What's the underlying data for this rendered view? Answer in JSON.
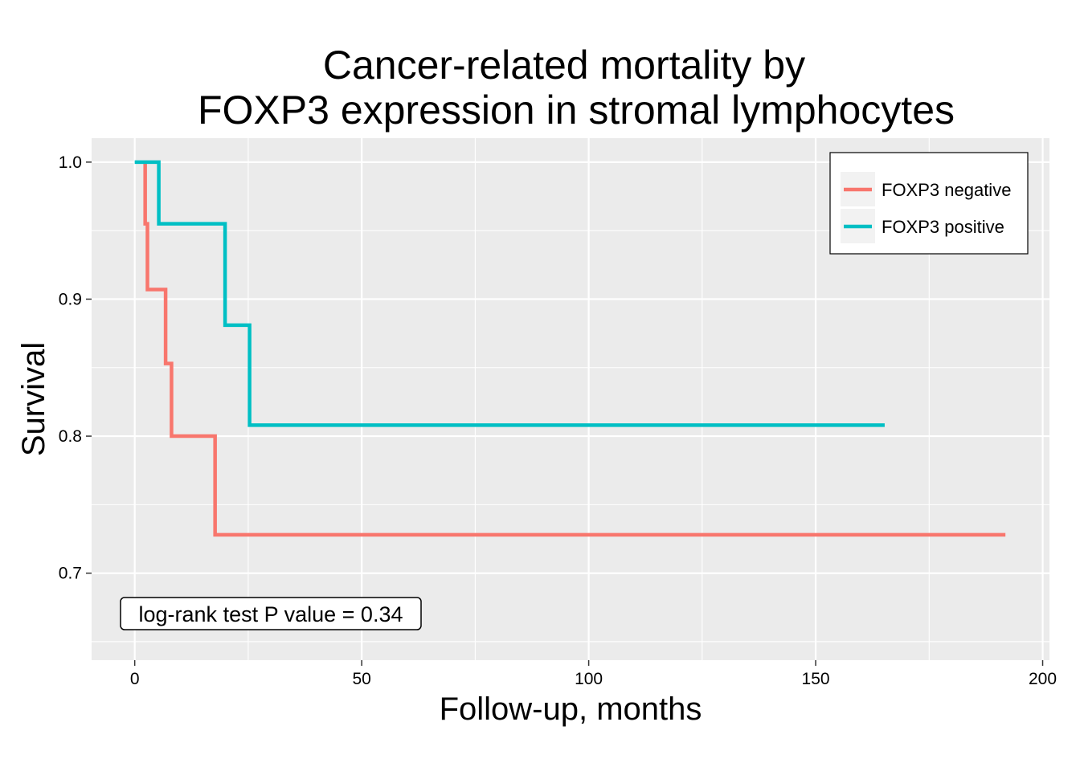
{
  "chart_data": {
    "type": "line",
    "step": true,
    "title_lines": [
      "Cancer-related mortality by",
      "FOXP3 expression in stromal lymphocytes"
    ],
    "xlabel": "Follow-up, months",
    "ylabel": "Survival",
    "xlim": [
      -9.5,
      201.5
    ],
    "ylim": [
      0.6365,
      1.0175
    ],
    "x_ticks": [
      0,
      50,
      100,
      150,
      200
    ],
    "x_tick_labels": [
      "0",
      "50",
      "100",
      "150",
      "200"
    ],
    "y_ticks": [
      0.7,
      0.8,
      0.9,
      1.0
    ],
    "y_tick_labels": [
      "0.7",
      "0.8",
      "0.9",
      "1.0"
    ],
    "grid": true,
    "legend_position": "top-right",
    "annotation": "log-rank test P value = 0.34",
    "series": [
      {
        "name": "FOXP3 negative",
        "color": "#F8766D",
        "points": [
          [
            2.3,
            1.0
          ],
          [
            2.3,
            0.955
          ],
          [
            2.8,
            0.955
          ],
          [
            2.8,
            0.907
          ],
          [
            6.8,
            0.907
          ],
          [
            6.8,
            0.853
          ],
          [
            8.1,
            0.853
          ],
          [
            8.1,
            0.8
          ],
          [
            17.7,
            0.8
          ],
          [
            17.7,
            0.728
          ],
          [
            191.8,
            0.728
          ]
        ]
      },
      {
        "name": "FOXP3 positive",
        "color": "#00BFC4",
        "points": [
          [
            0,
            1.0
          ],
          [
            5.3,
            1.0
          ],
          [
            5.3,
            0.955
          ],
          [
            19.9,
            0.955
          ],
          [
            19.9,
            0.881
          ],
          [
            25.3,
            0.881
          ],
          [
            25.3,
            0.808
          ],
          [
            165.2,
            0.808
          ]
        ]
      }
    ]
  }
}
